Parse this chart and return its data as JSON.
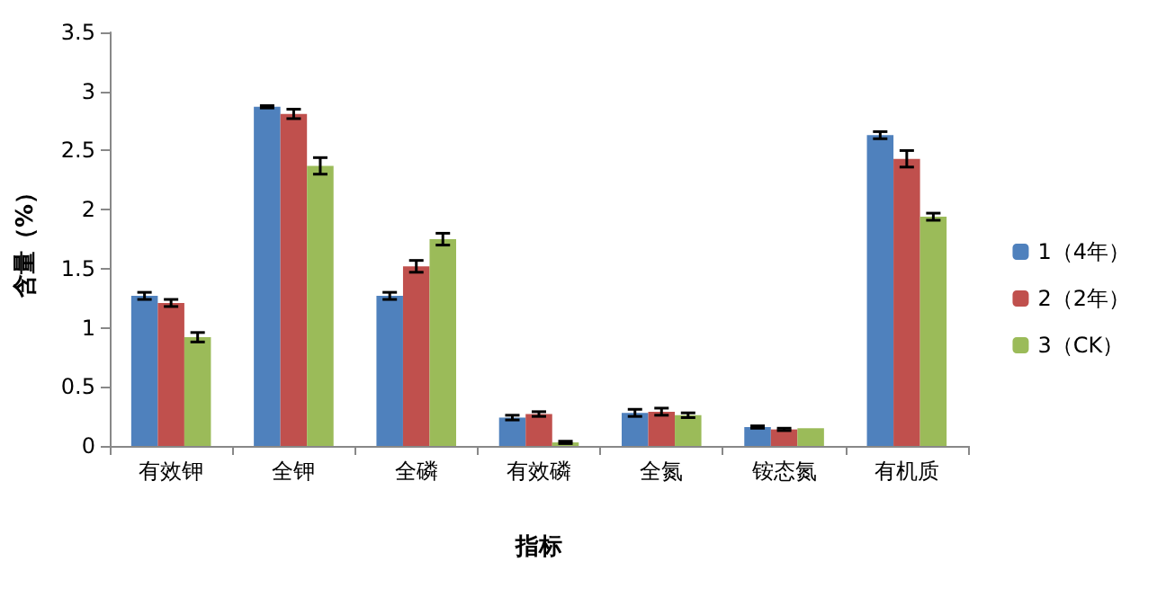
{
  "chart_data": {
    "type": "bar",
    "xlabel": "指标",
    "ylabel": "含量（%）",
    "categories": [
      "有效钾",
      "全钾",
      "全磷",
      "有效磷",
      "全氮",
      "铵态氮",
      "有机质"
    ],
    "series": [
      {
        "name": "1（4年）",
        "color": "#4f81bd",
        "values": [
          1.27,
          2.87,
          1.27,
          0.24,
          0.28,
          0.16,
          2.63
        ],
        "errors": [
          0.03,
          0.01,
          0.03,
          0.02,
          0.03,
          0.01,
          0.03
        ]
      },
      {
        "name": "2（2年）",
        "color": "#c0504d",
        "values": [
          1.21,
          2.81,
          1.52,
          0.27,
          0.29,
          0.14,
          2.43
        ],
        "errors": [
          0.03,
          0.04,
          0.05,
          0.02,
          0.03,
          0.01,
          0.07
        ]
      },
      {
        "name": "3（CK）",
        "color": "#9bbb59",
        "values": [
          0.92,
          2.37,
          1.75,
          0.03,
          0.26,
          0.15,
          1.94
        ],
        "errors": [
          0.04,
          0.07,
          0.05,
          0.01,
          0.02,
          null,
          0.03
        ]
      }
    ],
    "ylim": [
      0,
      3.5
    ],
    "yticks": [
      0,
      0.5,
      1,
      1.5,
      2,
      2.5,
      3,
      3.5
    ],
    "grid": false,
    "legend": "right"
  }
}
